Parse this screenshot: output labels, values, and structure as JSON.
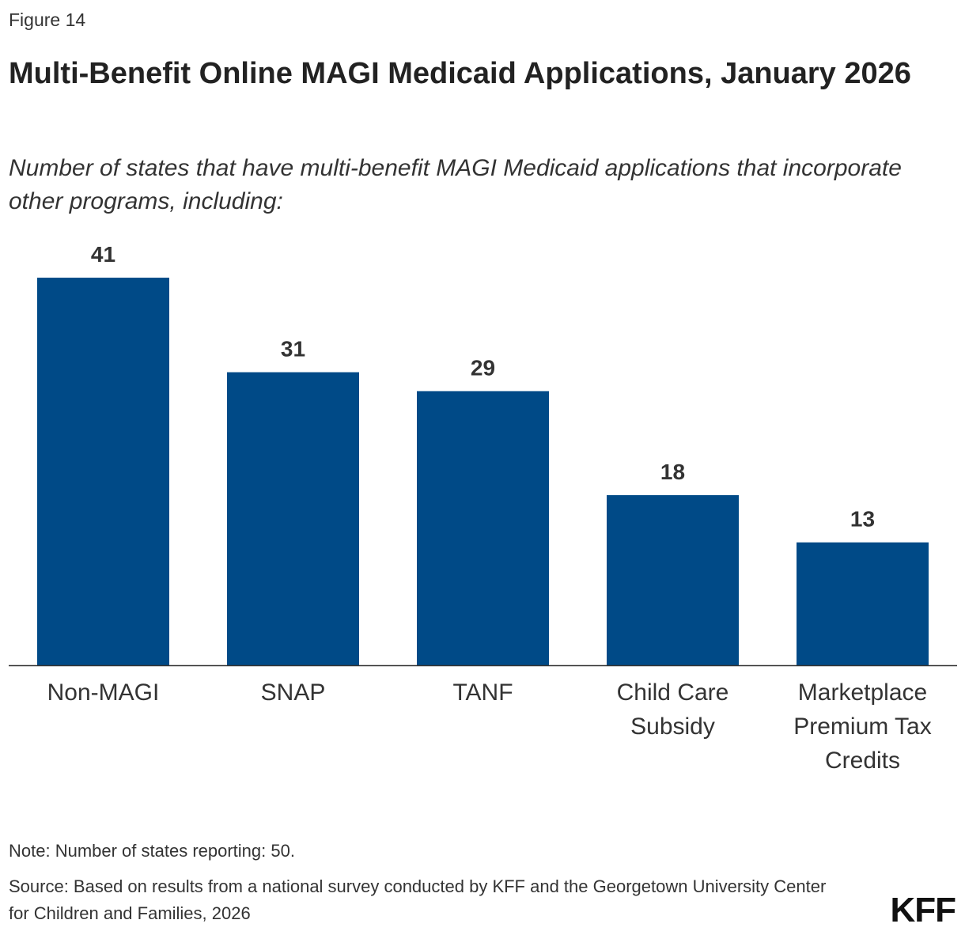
{
  "figure_label": "Figure 14",
  "chart_data": {
    "type": "bar",
    "title": "Multi-Benefit Online MAGI Medicaid Applications, January 2026",
    "subtitle": "Number of states that have multi-benefit MAGI Medicaid applications that incorporate other programs, including:",
    "categories": [
      "Non-MAGI",
      "SNAP",
      "TANF",
      "Child Care Subsidy",
      "Marketplace Premium Tax Credits"
    ],
    "category_lines": [
      [
        "Non-MAGI"
      ],
      [
        "SNAP"
      ],
      [
        "TANF"
      ],
      [
        "Child Care",
        "Subsidy"
      ],
      [
        "Marketplace",
        "Premium Tax",
        "Credits"
      ]
    ],
    "values": [
      41,
      31,
      29,
      18,
      13
    ],
    "xlabel": "",
    "ylabel": "",
    "ylim": [
      0,
      45
    ],
    "grid": false,
    "legend": "none",
    "bar_color": "#004A87",
    "data_labels": true
  },
  "note": "Note: Number of states reporting: 50.",
  "source": "Source: Based on results from a national survey conducted by KFF and the Georgetown University Center for Children and Families, 2026",
  "logo": "KFF"
}
